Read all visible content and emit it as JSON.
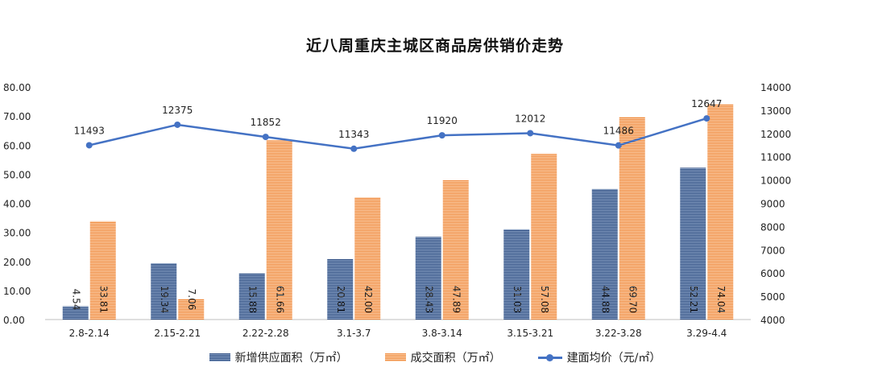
{
  "chart_data": {
    "type": "bar",
    "title": "近八周重庆主城区商品房供销价走势",
    "categories": [
      "2.8-2.14",
      "2.15-2.21",
      "2.22-2.28",
      "3.1-3.7",
      "3.8-3.14",
      "3.15-3.21",
      "3.22-3.28",
      "3.29-4.4"
    ],
    "series": [
      {
        "name": "新增供应面积（万㎡）",
        "kind": "bar",
        "axis": "left",
        "color": "#2d4d82",
        "values": [
          4.54,
          19.34,
          15.88,
          20.81,
          28.43,
          31.03,
          44.88,
          52.21
        ],
        "labels": [
          "4.54",
          "19.34",
          "15.88",
          "20.81",
          "28.43",
          "31.03",
          "44.88",
          "52.21"
        ]
      },
      {
        "name": "成交面积（万㎡）",
        "kind": "bar",
        "axis": "left",
        "color": "#f08a3c",
        "values": [
          33.81,
          7.06,
          61.66,
          42.0,
          47.89,
          57.08,
          69.7,
          74.04
        ],
        "labels": [
          "33.81",
          "7.06",
          "61.66",
          "42.00",
          "47.89",
          "57.08",
          "69.70",
          "74.04"
        ]
      },
      {
        "name": "建面均价（元/㎡）",
        "kind": "line",
        "axis": "right",
        "color": "#4472c4",
        "values": [
          11493,
          12375,
          11852,
          11343,
          11920,
          12012,
          11486,
          12647
        ],
        "labels": [
          "11493",
          "12375",
          "11852",
          "11343",
          "11920",
          "12012",
          "11486",
          "12647"
        ]
      }
    ],
    "y_left": {
      "ylim": [
        0,
        80
      ],
      "ticks": [
        "0.00",
        "10.00",
        "20.00",
        "30.00",
        "40.00",
        "50.00",
        "60.00",
        "70.00",
        "80.00"
      ]
    },
    "y_right": {
      "ylim": [
        4000,
        14000
      ],
      "ticks": [
        "4000",
        "5000",
        "6000",
        "7000",
        "8000",
        "9000",
        "10000",
        "11000",
        "12000",
        "13000",
        "14000"
      ]
    },
    "grid": false,
    "legend_position": "bottom"
  }
}
